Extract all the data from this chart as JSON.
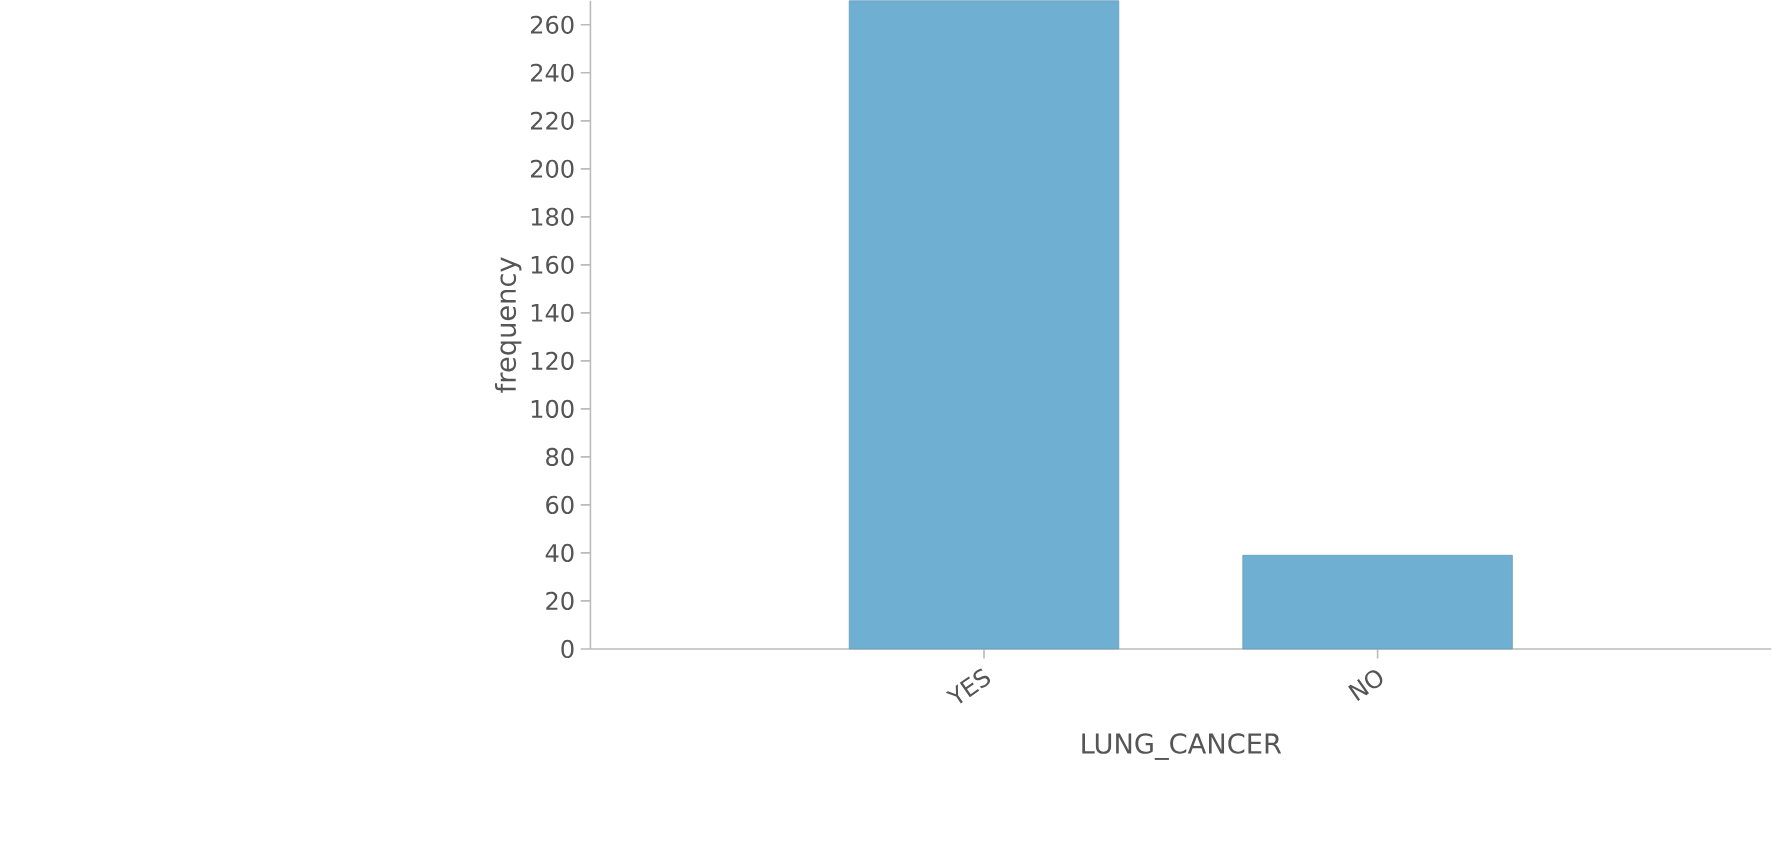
{
  "chart_data": {
    "type": "bar",
    "xlabel": "LUNG_CANCER",
    "ylabel": "frequency",
    "categories": [
      "YES",
      "NO"
    ],
    "values": [
      270,
      39
    ],
    "color": "#6fafd1",
    "ylim": [
      0,
      270
    ],
    "yticks": [
      0,
      20,
      40,
      60,
      80,
      100,
      120,
      140,
      160,
      180,
      200,
      220,
      240,
      260
    ],
    "grid": false
  }
}
